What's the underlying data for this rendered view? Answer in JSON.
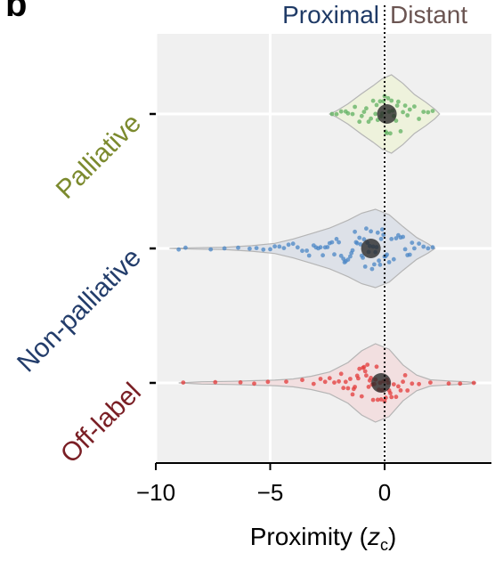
{
  "panel_label": "b",
  "chart_data": {
    "type": "violin",
    "xlabel_main": "Proximity (",
    "xlabel_var": "z",
    "xlabel_sub": "c",
    "xlabel_close": ")",
    "xlim": [
      -10,
      4.5
    ],
    "xticks": [
      -10,
      -5,
      0
    ],
    "xtick_labels": [
      "−10",
      "−5",
      "0"
    ],
    "reference_line_x": 0,
    "direction_labels": {
      "left": "Proximal",
      "right": "Distant"
    },
    "colors": {
      "panel_bg": "#f0f0f0",
      "proximal": "#1f3a66",
      "distant": "#6b5552"
    },
    "categories": [
      {
        "name": "Palliative",
        "label_color": "#7c8a2e",
        "fill": "#eef2dc",
        "point_color": "#5fb060",
        "median": 0.1,
        "violin": [
          [
            -2.4,
            0.0
          ],
          [
            -2.1,
            0.08
          ],
          [
            -1.6,
            0.26
          ],
          [
            -1.0,
            0.52
          ],
          [
            -0.5,
            0.72
          ],
          [
            -0.1,
            0.9
          ],
          [
            0.3,
            1.0
          ],
          [
            0.8,
            0.78
          ],
          [
            1.3,
            0.5
          ],
          [
            1.8,
            0.3
          ],
          [
            2.2,
            0.12
          ],
          [
            2.4,
            0.0
          ]
        ],
        "points": [
          -2.3,
          -2.1,
          -1.9,
          -1.7,
          -1.6,
          -1.4,
          -1.3,
          -1.1,
          -1.0,
          -0.9,
          -0.8,
          -0.7,
          -0.6,
          -0.5,
          -0.4,
          -0.35,
          -0.3,
          -0.2,
          -0.15,
          -0.1,
          -0.05,
          0.0,
          0.05,
          0.1,
          0.15,
          0.2,
          0.25,
          0.3,
          0.35,
          0.4,
          0.5,
          0.55,
          0.6,
          0.7,
          0.8,
          0.9,
          1.0,
          1.1,
          1.3,
          1.5,
          1.7,
          1.9,
          2.1
        ]
      },
      {
        "name": "Non-palliative",
        "label_color": "#233d6b",
        "fill": "#dde1e8",
        "point_color": "#4a86c6",
        "median": -0.6,
        "violin": [
          [
            -9.4,
            0.0
          ],
          [
            -8.5,
            0.015
          ],
          [
            -7.0,
            0.03
          ],
          [
            -5.8,
            0.07
          ],
          [
            -4.8,
            0.13
          ],
          [
            -4.0,
            0.24
          ],
          [
            -3.2,
            0.38
          ],
          [
            -2.4,
            0.52
          ],
          [
            -1.6,
            0.72
          ],
          [
            -1.0,
            0.9
          ],
          [
            -0.4,
            1.0
          ],
          [
            0.2,
            0.86
          ],
          [
            0.8,
            0.56
          ],
          [
            1.4,
            0.28
          ],
          [
            1.9,
            0.12
          ],
          [
            2.2,
            0.0
          ]
        ],
        "points": [
          -9.0,
          -8.7,
          -7.6,
          -7.0,
          -6.4,
          -5.9,
          -5.6,
          -5.3,
          -5.0,
          -4.8,
          -4.6,
          -4.4,
          -4.2,
          -4.0,
          -3.8,
          -3.6,
          -3.4,
          -3.3,
          -3.1,
          -3.0,
          -2.9,
          -2.8,
          -2.7,
          -2.6,
          -2.5,
          -2.4,
          -2.3,
          -2.2,
          -2.1,
          -2.0,
          -1.9,
          -1.8,
          -1.75,
          -1.7,
          -1.6,
          -1.5,
          -1.45,
          -1.4,
          -1.3,
          -1.25,
          -1.2,
          -1.1,
          -1.05,
          -1.0,
          -0.95,
          -0.9,
          -0.85,
          -0.8,
          -0.75,
          -0.7,
          -0.65,
          -0.6,
          -0.55,
          -0.5,
          -0.45,
          -0.4,
          -0.35,
          -0.3,
          -0.25,
          -0.2,
          -0.15,
          -0.1,
          -0.05,
          0.0,
          0.05,
          0.1,
          0.2,
          0.3,
          0.4,
          0.5,
          0.6,
          0.7,
          0.8,
          0.9,
          1.0,
          1.1,
          1.2,
          1.3,
          1.5,
          1.7,
          1.9,
          2.1
        ]
      },
      {
        "name": "Off-label",
        "label_color": "#7a1f25",
        "fill": "#f2dfe0",
        "point_color": "#e3393a",
        "median": -0.15,
        "violin": [
          [
            -9.0,
            0.0
          ],
          [
            -8.0,
            0.03
          ],
          [
            -6.6,
            0.04
          ],
          [
            -5.6,
            0.06
          ],
          [
            -4.8,
            0.07
          ],
          [
            -4.0,
            0.1
          ],
          [
            -3.2,
            0.17
          ],
          [
            -2.4,
            0.28
          ],
          [
            -1.6,
            0.52
          ],
          [
            -1.0,
            0.82
          ],
          [
            -0.4,
            1.0
          ],
          [
            0.2,
            0.86
          ],
          [
            0.8,
            0.46
          ],
          [
            1.4,
            0.2
          ],
          [
            2.0,
            0.08
          ],
          [
            2.8,
            0.05
          ],
          [
            3.6,
            0.03
          ],
          [
            4.0,
            0.0
          ]
        ],
        "points": [
          -8.8,
          -7.4,
          -6.3,
          -5.7,
          -5.1,
          -4.3,
          -3.6,
          -3.1,
          -2.8,
          -2.6,
          -2.4,
          -2.2,
          -2.0,
          -1.9,
          -1.8,
          -1.7,
          -1.6,
          -1.5,
          -1.4,
          -1.35,
          -1.3,
          -1.2,
          -1.15,
          -1.1,
          -1.0,
          -0.95,
          -0.9,
          -0.85,
          -0.8,
          -0.75,
          -0.7,
          -0.65,
          -0.6,
          -0.55,
          -0.5,
          -0.45,
          -0.4,
          -0.35,
          -0.3,
          -0.25,
          -0.2,
          -0.15,
          -0.1,
          -0.05,
          0.0,
          0.05,
          0.1,
          0.15,
          0.2,
          0.25,
          0.3,
          0.4,
          0.5,
          0.6,
          0.7,
          0.8,
          0.9,
          1.0,
          1.2,
          1.5,
          2.0,
          2.8,
          3.3,
          3.9
        ]
      }
    ]
  }
}
